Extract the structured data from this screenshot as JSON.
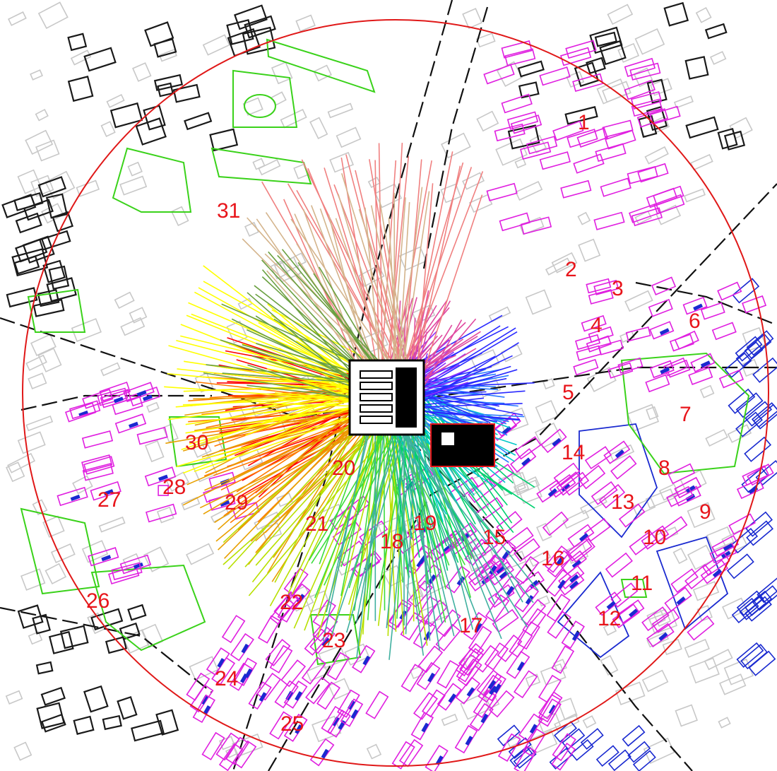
{
  "map": {
    "colors": {
      "background": "#ffffff",
      "radius_circle": "#e01818",
      "label": "#e8141a",
      "road": "#111111",
      "building_gray": "#c8c8c8",
      "building_black": "#1a1a1a",
      "residential": "#e020e0",
      "public": "#3ad21a",
      "blue": "#1a2ad0",
      "site": "#000000"
    },
    "zones": [
      {
        "id": "1",
        "label": "1"
      },
      {
        "id": "2",
        "label": "2"
      },
      {
        "id": "3",
        "label": "3"
      },
      {
        "id": "4",
        "label": "4"
      },
      {
        "id": "5",
        "label": "5"
      },
      {
        "id": "6",
        "label": "6"
      },
      {
        "id": "7",
        "label": "7"
      },
      {
        "id": "8",
        "label": "8"
      },
      {
        "id": "9",
        "label": "9"
      },
      {
        "id": "10",
        "label": "10"
      },
      {
        "id": "11",
        "label": "11"
      },
      {
        "id": "12",
        "label": "12"
      },
      {
        "id": "13",
        "label": "13"
      },
      {
        "id": "14",
        "label": "14"
      },
      {
        "id": "15",
        "label": "15"
      },
      {
        "id": "16",
        "label": "16"
      },
      {
        "id": "17",
        "label": "17"
      },
      {
        "id": "18",
        "label": "18"
      },
      {
        "id": "19",
        "label": "19"
      },
      {
        "id": "20",
        "label": "20"
      },
      {
        "id": "21",
        "label": "21"
      },
      {
        "id": "22",
        "label": "22"
      },
      {
        "id": "23",
        "label": "23"
      },
      {
        "id": "24",
        "label": "24"
      },
      {
        "id": "25",
        "label": "25"
      },
      {
        "id": "26",
        "label": "26"
      },
      {
        "id": "27",
        "label": "27"
      },
      {
        "id": "28",
        "label": "28"
      },
      {
        "id": "29",
        "label": "29"
      },
      {
        "id": "30",
        "label": "30"
      },
      {
        "id": "31",
        "label": "31"
      }
    ],
    "sunlight_ray_colors": [
      "#ff0000",
      "#ff7a00",
      "#e8a000",
      "#ffff00",
      "#b8e000",
      "#3ddc3d",
      "#00d070",
      "#00c8c8",
      "#2a7aff",
      "#2a2aff",
      "#8a2aff",
      "#e04aa0",
      "#f08080",
      "#d4b48c",
      "#6aa040",
      "#40b0a0"
    ]
  }
}
